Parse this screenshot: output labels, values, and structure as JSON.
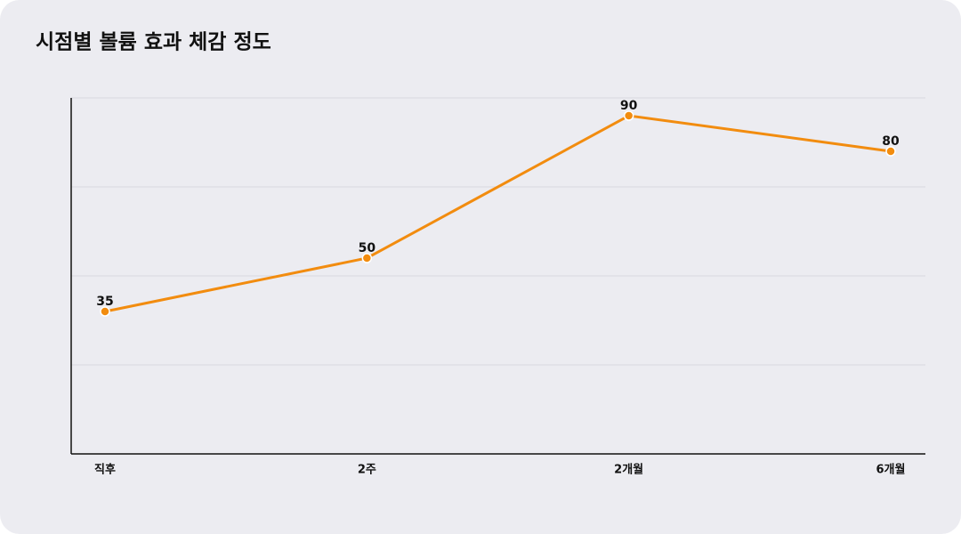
{
  "chart_data": {
    "type": "line",
    "title": "시점별 볼륨 효과 체감 정도",
    "categories": [
      "직후",
      "2주",
      "2개월",
      "6개월"
    ],
    "series": [
      {
        "name": null,
        "color": "#f28c0f",
        "values": [
          35,
          50,
          90,
          80
        ]
      }
    ],
    "ylim": [
      -5,
      95
    ],
    "yticks": [
      -5,
      20,
      45,
      70,
      95
    ],
    "grid": true
  }
}
